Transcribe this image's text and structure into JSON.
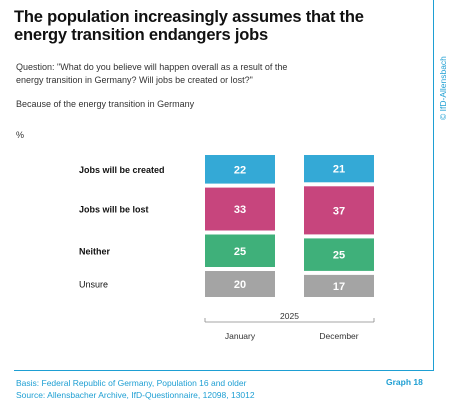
{
  "title": "The population increasingly assumes that the energy transition endangers jobs",
  "question": "Question: \"What do you believe will happen overall as a result of the energy transition in Germany? Will jobs be created or lost?\"",
  "subtext": "Because of the energy transition in Germany",
  "unit": "%",
  "copyright": "© IfD-Allensbach",
  "footer": {
    "basis": "Basis: Federal Republic of Germany, Population 16 and older",
    "source": "Source: Allensbacher Archive, IfD-Questionnaire, 12098, 13012",
    "graph_label": "Graph 18"
  },
  "colors": {
    "accent": "#1e9fd3",
    "created": "#34a9d6",
    "lost": "#c7457d",
    "neither": "#3fb07a",
    "unsure": "#a4a4a4"
  },
  "chart_data": {
    "type": "bar",
    "stacked": true,
    "year_label": "2025",
    "categories": [
      "January",
      "December"
    ],
    "series": [
      {
        "name": "Jobs will be created",
        "bold": true,
        "color_key": "created",
        "values": [
          22,
          21
        ]
      },
      {
        "name": "Jobs will be lost",
        "bold": true,
        "color_key": "lost",
        "values": [
          33,
          37
        ]
      },
      {
        "name": "Neither",
        "bold": true,
        "color_key": "neither",
        "values": [
          25,
          25
        ]
      },
      {
        "name": "Unsure",
        "bold": false,
        "color_key": "unsure",
        "values": [
          20,
          17
        ]
      }
    ]
  }
}
